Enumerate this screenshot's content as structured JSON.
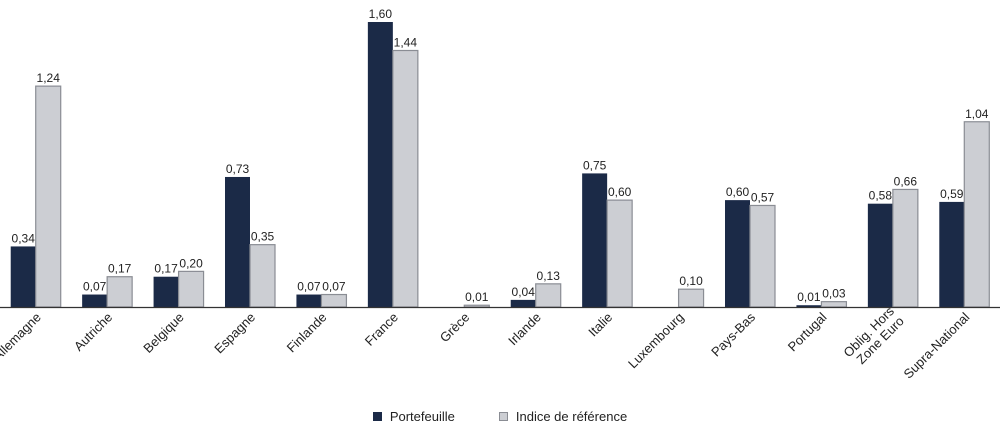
{
  "chart_data": {
    "type": "bar",
    "title": "",
    "xlabel": "",
    "ylabel": "",
    "ylim": [
      0,
      1.65
    ],
    "grid": false,
    "legend_position": "bottom",
    "categories": [
      "Allemagne",
      "Autriche",
      "Belgique",
      "Espagne",
      "Finlande",
      "France",
      "Grèce",
      "Irlande",
      "Italie",
      "Luxembourg",
      "Pays-Bas",
      "Portugal",
      "Oblig. Hors Zone Euro",
      "Supra-National"
    ],
    "category_lines": [
      [
        "Allemagne"
      ],
      [
        "Autriche"
      ],
      [
        "Belgique"
      ],
      [
        "Espagne"
      ],
      [
        "Finlande"
      ],
      [
        "France"
      ],
      [
        "Grèce"
      ],
      [
        "Irlande"
      ],
      [
        "Italie"
      ],
      [
        "Luxembourg"
      ],
      [
        "Pays-Bas"
      ],
      [
        "Portugal"
      ],
      [
        "Oblig. Hors",
        "Zone Euro"
      ],
      [
        "Supra-National"
      ]
    ],
    "series": [
      {
        "name": "Portefeuille",
        "color": "#1b2a47",
        "values": [
          0.34,
          0.07,
          0.17,
          0.73,
          0.07,
          1.6,
          null,
          0.04,
          0.75,
          null,
          0.6,
          0.01,
          0.58,
          0.59
        ],
        "labels": [
          "0,34",
          "0,07",
          "0,17",
          "0,73",
          "0,07",
          "1,60",
          "",
          "0,04",
          "0,75",
          "",
          "0,60",
          "0,01",
          "0,58",
          "0,59"
        ]
      },
      {
        "name": "Indice de référence",
        "color": "#ccced3",
        "values": [
          1.24,
          0.17,
          0.2,
          0.35,
          0.07,
          1.44,
          0.01,
          0.13,
          0.6,
          0.1,
          0.57,
          0.03,
          0.66,
          1.04
        ],
        "labels": [
          "1,24",
          "0,17",
          "0,20",
          "0,35",
          "0,07",
          "1,44",
          "0,01",
          "0,13",
          "0,60",
          "0,10",
          "0,57",
          "0,03",
          "0,66",
          "1,04"
        ]
      }
    ]
  }
}
